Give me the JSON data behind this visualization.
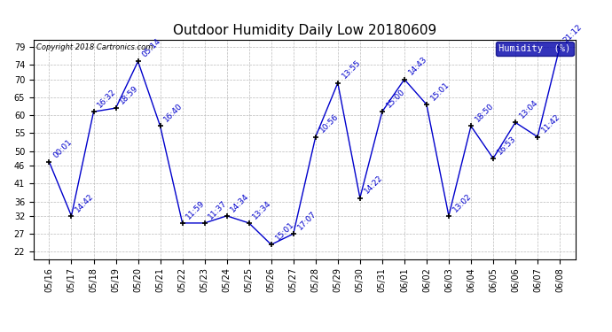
{
  "title": "Outdoor Humidity Daily Low 20180609",
  "copyright": "Copyright 2018 Cartronics.com",
  "legend_label": "Humidity  (%)",
  "x_labels": [
    "05/16",
    "05/17",
    "05/18",
    "05/19",
    "05/20",
    "05/21",
    "05/22",
    "05/23",
    "05/24",
    "05/25",
    "05/26",
    "05/27",
    "05/28",
    "05/29",
    "05/30",
    "05/31",
    "06/01",
    "06/02",
    "06/03",
    "06/04",
    "06/05",
    "06/06",
    "06/07",
    "06/08"
  ],
  "y_values": [
    47,
    32,
    61,
    62,
    75,
    57,
    30,
    30,
    32,
    30,
    24,
    27,
    54,
    69,
    37,
    61,
    70,
    63,
    32,
    57,
    48,
    58,
    54,
    79
  ],
  "point_labels": [
    "00:01",
    "14:42",
    "16:32",
    "18:59",
    "05:14",
    "16:40",
    "11:59",
    "11:37",
    "14:34",
    "13:34",
    "15:01",
    "17:07",
    "10:56",
    "13:55",
    "14:22",
    "15:00",
    "14:43",
    "15:01",
    "13:02",
    "18:50",
    "16:53",
    "13:04",
    "11:42",
    "21:12"
  ],
  "ylim_min": 20,
  "ylim_max": 81,
  "yticks": [
    22,
    27,
    32,
    36,
    41,
    46,
    50,
    55,
    60,
    65,
    70,
    74,
    79
  ],
  "line_color": "#0000CC",
  "bg_color": "#ffffff",
  "grid_color": "#bbbbbb",
  "title_fontsize": 11,
  "tick_fontsize": 7,
  "point_label_fontsize": 6.5,
  "legend_bg_color": "#0000AA",
  "legend_text_color": "#ffffff"
}
